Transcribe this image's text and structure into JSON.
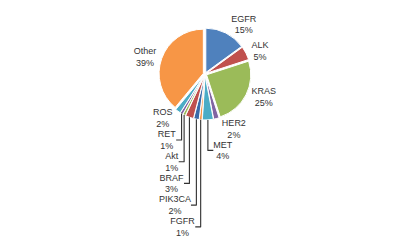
{
  "chart_data": {
    "type": "pie",
    "categories": [
      "EGFR",
      "ALK",
      "KRAS",
      "HER2",
      "MET",
      "FGFR",
      "PIK3CA",
      "BRAF",
      "Akt",
      "RET",
      "ROS",
      "Other"
    ],
    "values": [
      15,
      5,
      25,
      2,
      4,
      1,
      2,
      3,
      1,
      1,
      2,
      39
    ],
    "value_labels": [
      "15%",
      "5%",
      "25%",
      "2%",
      "4%",
      "1%",
      "2%",
      "3%",
      "1%",
      "1%",
      "2%",
      "39%"
    ],
    "colors": [
      "#4f81bd",
      "#c0504d",
      "#9bbb59",
      "#8064a2",
      "#4bacc6",
      "#f79646",
      "#3a6aa8",
      "#c0504d",
      "#9bbb59",
      "#8064a2",
      "#4bacc6",
      "#f79646"
    ],
    "data_labels": true
  }
}
